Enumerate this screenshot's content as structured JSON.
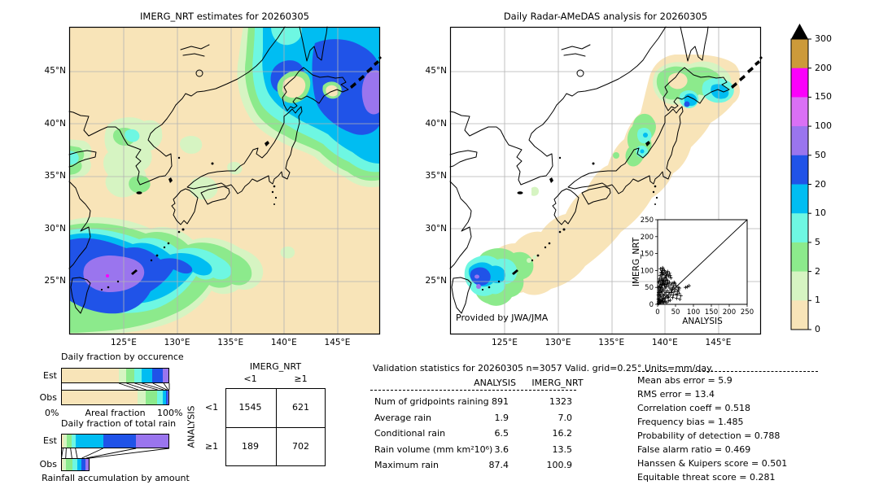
{
  "accent_colors": {
    "land_bg": "#f8e4b8",
    "grid": "#b3b3b3",
    "coast": "#000000"
  },
  "chart_data": [
    {
      "type": "heatmap",
      "id": "imerg_map",
      "title": "IMERG_NRT estimates for 20260305",
      "x_ticks": {
        "values": [
          125,
          130,
          135,
          140,
          145
        ],
        "labels": [
          "125°E",
          "130°E",
          "135°E",
          "140°E",
          "145°E"
        ]
      },
      "y_ticks": {
        "values": [
          45,
          40,
          35,
          30,
          25
        ],
        "labels": [
          "45°N",
          "40°N",
          "35°N",
          "30°N",
          "25°N"
        ]
      },
      "extent": {
        "lon": [
          119.9,
          149.0
        ],
        "lat": [
          20.0,
          49.25
        ]
      },
      "grid": true
    },
    {
      "type": "heatmap",
      "id": "radar_map",
      "title": "Daily Radar-AMeDAS analysis for 20260305",
      "credit": "Provided by JWA/JMA",
      "x_ticks": {
        "values": [
          125,
          130,
          135,
          140,
          145
        ],
        "labels": [
          "125°E",
          "130°E",
          "135°E",
          "140°E",
          "145°E"
        ]
      },
      "y_ticks": {
        "values": [
          45,
          40,
          35,
          30,
          25
        ],
        "labels": [
          "45°N",
          "40°N",
          "35°N",
          "30°N",
          "25°N"
        ]
      },
      "extent": {
        "lon": [
          119.9,
          149.0
        ],
        "lat": [
          20.0,
          49.25
        ]
      },
      "grid": true
    },
    {
      "type": "bar",
      "id": "occurrence",
      "title": "Daily fraction by occurence",
      "xlabel_left": "0%",
      "xlabel_center": "Areal fraction",
      "xlabel_right": "100%",
      "rows": [
        {
          "label": "Est",
          "segments": [
            {
              "color": "#f8e4b8",
              "fraction": 0.535
            },
            {
              "color": "#d6f4c2",
              "fraction": 0.07
            },
            {
              "color": "#8cea8c",
              "fraction": 0.075
            },
            {
              "color": "#6ef7e2",
              "fraction": 0.068
            },
            {
              "color": "#00bdf2",
              "fraction": 0.1
            },
            {
              "color": "#2053e8",
              "fraction": 0.1
            },
            {
              "color": "#9a75ee",
              "fraction": 0.052
            }
          ]
        },
        {
          "label": "Obs",
          "segments": [
            {
              "color": "#f8e4b8",
              "fraction": 0.7125
            },
            {
              "color": "#d6f4c2",
              "fraction": 0.075
            },
            {
              "color": "#8cea8c",
              "fraction": 0.105
            },
            {
              "color": "#6ef7e2",
              "fraction": 0.055
            },
            {
              "color": "#00bdf2",
              "fraction": 0.03
            },
            {
              "color": "#2053e8",
              "fraction": 0.0125
            },
            {
              "color": "#9a75ee",
              "fraction": 0.01
            }
          ]
        }
      ]
    },
    {
      "type": "bar",
      "id": "totalrain",
      "title": "Daily fraction of total rain",
      "footer": "Rainfall accumulation by amount",
      "rows": [
        {
          "label": "Est",
          "segments": [
            {
              "color": "#f8e4b8",
              "fraction": 0.018
            },
            {
              "color": "#d6f4c2",
              "fraction": 0.03
            },
            {
              "color": "#8cea8c",
              "fraction": 0.04
            },
            {
              "color": "#6ef7e2",
              "fraction": 0.045
            },
            {
              "color": "#00bdf2",
              "fraction": 0.255
            },
            {
              "color": "#2053e8",
              "fraction": 0.305
            },
            {
              "color": "#9a75ee",
              "fraction": 0.307
            }
          ]
        },
        {
          "label": "Obs",
          "segments": [
            {
              "color": "#f8e4b8",
              "fraction": 0.004
            },
            {
              "color": "#d6f4c2",
              "fraction": 0.039
            },
            {
              "color": "#8cea8c",
              "fraction": 0.0575
            },
            {
              "color": "#6ef7e2",
              "fraction": 0.05
            },
            {
              "color": "#00bdf2",
              "fraction": 0.0425
            },
            {
              "color": "#2053e8",
              "fraction": 0.04
            },
            {
              "color": "#9a75ee",
              "fraction": 0.0295
            }
          ]
        }
      ]
    },
    {
      "type": "table",
      "id": "contingency",
      "col_title": "IMERG_NRT",
      "row_title": "ANALYSIS",
      "col_labels": [
        "<1",
        "≥1"
      ],
      "row_labels": [
        "<1",
        "≥1"
      ],
      "values": [
        [
          1545,
          621
        ],
        [
          189,
          702
        ]
      ]
    },
    {
      "type": "table",
      "id": "validation",
      "title": "Validation statistics for 20260305  n=3057 Valid. grid=0.25° Units=mm/day.",
      "columns": [
        "ANALYSIS",
        "IMERG_NRT"
      ],
      "rows": [
        {
          "label": "Num of gridpoints raining",
          "analysis": "891",
          "imerg": "1323"
        },
        {
          "label": "Average rain",
          "analysis": "1.9",
          "imerg": "7.0"
        },
        {
          "label": "Conditional rain",
          "analysis": "6.5",
          "imerg": "16.2"
        },
        {
          "label": "Rain volume (mm km²10⁶)",
          "analysis": "3.6",
          "imerg": "13.5"
        },
        {
          "label": "Maximum rain",
          "analysis": "87.4",
          "imerg": "100.9"
        }
      ],
      "stats": [
        {
          "label": "Mean abs error",
          "value": "5.9"
        },
        {
          "label": "RMS error",
          "value": "13.4"
        },
        {
          "label": "Correlation coeff",
          "value": "0.518"
        },
        {
          "label": "Frequency bias",
          "value": "1.485"
        },
        {
          "label": "Probability of detection",
          "value": "0.788"
        },
        {
          "label": "False alarm ratio",
          "value": "0.469"
        },
        {
          "label": "Hanssen & Kuipers score",
          "value": "0.501"
        },
        {
          "label": "Equitable threat score",
          "value": "0.281"
        }
      ]
    },
    {
      "type": "scatter",
      "id": "inset_scatter",
      "xlabel": "ANALYSIS",
      "ylabel": "IMERG_NRT",
      "xlim": [
        0,
        250
      ],
      "ylim": [
        0,
        250
      ],
      "tick_values": [
        0,
        50,
        100,
        150,
        200,
        250
      ],
      "tick_labels": [
        "0",
        "50",
        "100",
        "150",
        "200",
        "250"
      ],
      "diagonal": true,
      "points": [
        [
          2,
          3
        ],
        [
          3,
          8
        ],
        [
          4,
          5
        ],
        [
          5,
          12
        ],
        [
          5,
          22
        ],
        [
          6,
          4
        ],
        [
          6,
          30
        ],
        [
          7,
          15
        ],
        [
          7,
          45
        ],
        [
          8,
          8
        ],
        [
          8,
          25
        ],
        [
          8,
          60
        ],
        [
          9,
          35
        ],
        [
          9,
          70
        ],
        [
          10,
          10
        ],
        [
          10,
          50
        ],
        [
          10,
          80
        ],
        [
          11,
          22
        ],
        [
          11,
          92
        ],
        [
          12,
          40
        ],
        [
          12,
          65
        ],
        [
          12,
          100
        ],
        [
          13,
          15
        ],
        [
          13,
          55
        ],
        [
          14,
          30
        ],
        [
          14,
          75
        ],
        [
          14,
          95
        ],
        [
          15,
          8
        ],
        [
          15,
          45
        ],
        [
          15,
          88
        ],
        [
          16,
          60
        ],
        [
          16,
          103
        ],
        [
          17,
          25
        ],
        [
          17,
          70
        ],
        [
          18,
          40
        ],
        [
          18,
          90
        ],
        [
          19,
          12
        ],
        [
          19,
          55
        ],
        [
          20,
          30
        ],
        [
          20,
          78
        ],
        [
          21,
          48
        ],
        [
          21,
          95
        ],
        [
          22,
          18
        ],
        [
          22,
          65
        ],
        [
          23,
          35
        ],
        [
          24,
          52
        ],
        [
          24,
          85
        ],
        [
          25,
          25
        ],
        [
          26,
          60
        ],
        [
          26,
          92
        ],
        [
          27,
          40
        ],
        [
          28,
          70
        ],
        [
          28,
          97
        ],
        [
          29,
          20
        ],
        [
          30,
          55
        ],
        [
          31,
          83
        ],
        [
          32,
          35
        ],
        [
          33,
          65
        ],
        [
          34,
          48
        ],
        [
          35,
          85
        ],
        [
          36,
          28
        ],
        [
          37,
          58
        ],
        [
          38,
          42
        ],
        [
          40,
          35
        ],
        [
          41,
          62
        ],
        [
          43,
          50
        ],
        [
          45,
          55
        ],
        [
          47,
          38
        ],
        [
          48,
          62
        ],
        [
          50,
          45
        ],
        [
          52,
          30
        ],
        [
          55,
          28
        ],
        [
          57,
          50
        ],
        [
          60,
          33
        ],
        [
          62,
          15
        ],
        [
          65,
          25
        ],
        [
          78,
          50
        ],
        [
          83,
          52
        ],
        [
          88,
          55
        ],
        [
          3,
          2
        ],
        [
          4,
          15
        ],
        [
          2,
          28
        ],
        [
          6,
          55
        ],
        [
          9,
          5
        ],
        [
          13,
          5
        ],
        [
          17,
          5
        ],
        [
          21,
          8
        ],
        [
          25,
          5
        ],
        [
          30,
          10
        ],
        [
          35,
          12
        ],
        [
          42,
          20
        ],
        [
          5,
          38
        ],
        [
          7,
          85
        ],
        [
          11,
          58
        ],
        [
          2,
          50
        ],
        [
          3,
          65
        ],
        [
          4,
          42
        ],
        [
          16,
          18
        ],
        [
          23,
          78
        ],
        [
          27,
          88
        ],
        [
          31,
          22
        ],
        [
          44,
          28
        ],
        [
          53,
          18
        ],
        [
          58,
          42
        ],
        [
          8,
          105
        ],
        [
          12,
          88
        ],
        [
          19,
          100
        ],
        [
          6,
          75
        ],
        [
          4,
          68
        ],
        [
          10,
          95
        ],
        [
          14,
          108
        ],
        [
          3,
          35
        ],
        [
          2,
          15
        ],
        [
          5,
          52
        ],
        [
          9,
          48
        ],
        [
          11,
          38
        ],
        [
          13,
          72
        ],
        [
          15,
          62
        ],
        [
          18,
          68
        ],
        [
          20,
          58
        ],
        [
          22,
          82
        ],
        [
          25,
          72
        ],
        [
          29,
          62
        ],
        [
          33,
          92
        ],
        [
          37,
          78
        ],
        [
          41,
          45
        ],
        [
          46,
          65
        ],
        [
          51,
          55
        ],
        [
          56,
          38
        ],
        [
          61,
          48
        ]
      ]
    },
    {
      "type": "colorbar",
      "id": "scale",
      "labels": [
        "300",
        "200",
        "150",
        "100",
        "50",
        "20",
        "10",
        "5",
        "2",
        "1",
        "0"
      ],
      "colors_top_to_bottom": [
        "#cc9a3a",
        "#fb00fb",
        "#da70f5",
        "#9a75ee",
        "#2053e8",
        "#00bdf2",
        "#6ef7e2",
        "#8cea8c",
        "#d6f4c2",
        "#f8e4b8"
      ],
      "overflow_marker": "black-triangle"
    }
  ]
}
